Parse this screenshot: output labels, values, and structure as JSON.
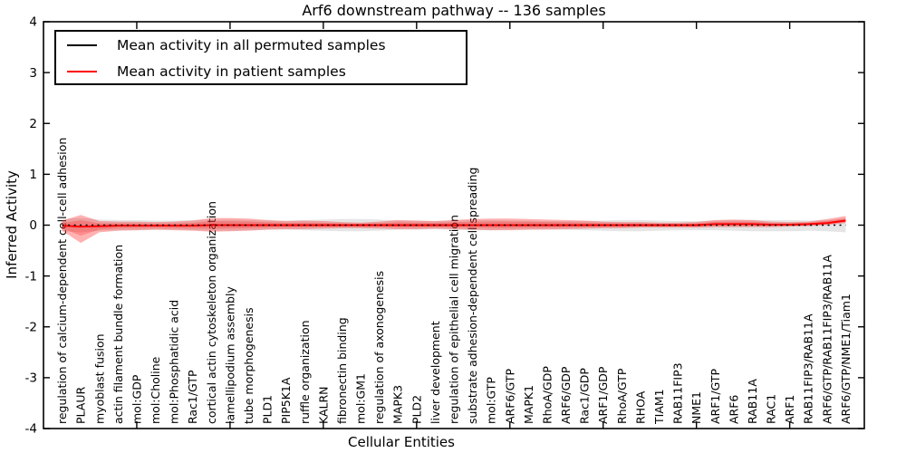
{
  "chart_data": {
    "type": "line",
    "title": "Arf6 downstream pathway -- 136 samples",
    "xlabel": "Cellular Entities",
    "ylabel": "Inferred Activity",
    "xlim": [
      0,
      44
    ],
    "ylim": [
      -4,
      4
    ],
    "yticks": [
      4,
      3,
      2,
      1,
      0,
      -1,
      -2,
      -3,
      -4
    ],
    "x_major_ticks": [
      5,
      10,
      15,
      20,
      25,
      30,
      35,
      40
    ],
    "grid": false,
    "legend_position": "upper left",
    "categories": [
      "regulation of calcium-dependent cell-cell adhesion",
      "PLAUR",
      "myoblast fusion",
      "actin filament bundle formation",
      "mol:GDP",
      "mol:Choline",
      "mol:Phosphatidic acid",
      "Rac1/GTP",
      "cortical actin cytoskeleton organization",
      "lamellipodium assembly",
      "tube morphogenesis",
      "PLD1",
      "PIP5K1A",
      "ruffle organization",
      "KALRN",
      "fibronectin binding",
      "mol:GM1",
      "regulation of axonogenesis",
      "MAPK3",
      "PLD2",
      "liver development",
      "regulation of epithelial cell migration",
      "substrate adhesion-dependent cell spreading",
      "mol:GTP",
      "ARF6/GTP",
      "MAPK1",
      "RhoA/GDP",
      "ARF6/GDP",
      "Rac1/GDP",
      "ARF1/GDP",
      "RhoA/GTP",
      "RHOA",
      "TIAM1",
      "RAB11FIP3",
      "NME1",
      "ARF1/GTP",
      "ARF6",
      "RAB11A",
      "RAC1",
      "ARF1",
      "RAB11FIP3/RAB11A",
      "ARF6/GTP/RAB11FIP3/RAB11A",
      "ARF6/GTP/NME1/Tiam1"
    ],
    "series": [
      {
        "name": "Mean activity in all permuted samples",
        "color": "#000000",
        "linestyle": "dashed",
        "values": [
          0,
          0,
          0,
          0,
          0,
          0,
          0,
          0,
          0,
          0,
          0,
          0,
          0,
          0,
          0,
          0,
          0,
          0,
          0,
          0,
          0,
          0,
          0,
          0,
          0,
          0,
          0,
          0,
          0,
          0,
          0,
          0,
          0,
          0,
          0,
          0,
          0,
          0,
          0,
          0,
          0,
          0,
          0
        ]
      },
      {
        "name": "Mean activity in patient samples",
        "color": "#ff0000",
        "linestyle": "solid",
        "values": [
          -0.01,
          -0.03,
          -0.02,
          -0.01,
          -0.01,
          -0.01,
          -0.01,
          -0.01,
          0,
          0,
          0,
          0,
          0,
          0,
          0,
          0,
          0,
          0,
          0,
          0,
          0,
          0,
          0,
          0,
          0,
          0,
          0,
          0,
          0,
          0,
          0,
          0,
          0,
          0,
          0,
          0.02,
          0.02,
          0.02,
          0.01,
          0.01,
          0.02,
          0.04,
          0.09
        ]
      }
    ],
    "bands": [
      {
        "name": "permuted-samples-range",
        "color": "#999999",
        "opacity": 0.25,
        "upper": [
          0.12,
          0.14,
          0.11,
          0.1,
          0.1,
          0.09,
          0.09,
          0.1,
          0.11,
          0.11,
          0.1,
          0.09,
          0.09,
          0.1,
          0.11,
          0.12,
          0.12,
          0.11,
          0.09,
          0.09,
          0.08,
          0.09,
          0.1,
          0.1,
          0.09,
          0.09,
          0.08,
          0.08,
          0.08,
          0.09,
          0.1,
          0.1,
          0.09,
          0.08,
          0.08,
          0.09,
          0.1,
          0.1,
          0.1,
          0.1,
          0.09,
          0.1,
          0.12
        ],
        "lower": [
          -0.12,
          -0.14,
          -0.11,
          -0.1,
          -0.1,
          -0.09,
          -0.09,
          -0.1,
          -0.11,
          -0.11,
          -0.1,
          -0.09,
          -0.09,
          -0.1,
          -0.11,
          -0.12,
          -0.12,
          -0.11,
          -0.09,
          -0.09,
          -0.08,
          -0.09,
          -0.1,
          -0.1,
          -0.09,
          -0.09,
          -0.08,
          -0.09,
          -0.1,
          -0.11,
          -0.12,
          -0.12,
          -0.11,
          -0.1,
          -0.1,
          -0.1,
          -0.11,
          -0.12,
          -0.12,
          -0.12,
          -0.11,
          -0.12,
          -0.14
        ]
      },
      {
        "name": "patient-samples-range",
        "color": "#ff0000",
        "opacity": 0.3,
        "inner_fraction": 0.55,
        "inner_opacity": 0.22,
        "upper": [
          0.09,
          0.2,
          0.08,
          0.07,
          0.07,
          0.06,
          0.07,
          0.09,
          0.14,
          0.14,
          0.13,
          0.1,
          0.08,
          0.09,
          0.08,
          0.06,
          0.05,
          0.07,
          0.1,
          0.09,
          0.08,
          0.1,
          0.12,
          0.13,
          0.13,
          0.12,
          0.11,
          0.1,
          0.09,
          0.07,
          0.06,
          0.06,
          0.05,
          0.05,
          0.06,
          0.1,
          0.11,
          0.1,
          0.07,
          0.06,
          0.07,
          0.12,
          0.18
        ],
        "lower": [
          -0.11,
          -0.35,
          -0.14,
          -0.11,
          -0.1,
          -0.09,
          -0.1,
          -0.11,
          -0.13,
          -0.12,
          -0.11,
          -0.09,
          -0.08,
          -0.08,
          -0.07,
          -0.06,
          -0.06,
          -0.07,
          -0.08,
          -0.08,
          -0.07,
          -0.08,
          -0.09,
          -0.1,
          -0.1,
          -0.09,
          -0.09,
          -0.08,
          -0.07,
          -0.06,
          -0.06,
          -0.05,
          -0.05,
          -0.05,
          -0.05,
          -0.04,
          -0.04,
          -0.04,
          -0.04,
          -0.03,
          -0.02,
          0.0,
          0.04
        ]
      }
    ]
  }
}
